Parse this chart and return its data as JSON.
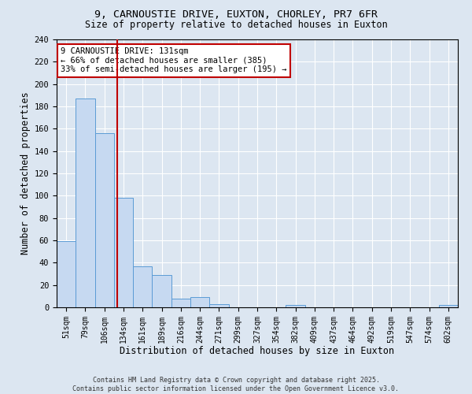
{
  "title_line1": "9, CARNOUSTIE DRIVE, EUXTON, CHORLEY, PR7 6FR",
  "title_line2": "Size of property relative to detached houses in Euxton",
  "xlabel": "Distribution of detached houses by size in Euxton",
  "ylabel": "Number of detached properties",
  "categories": [
    "51sqm",
    "79sqm",
    "106sqm",
    "134sqm",
    "161sqm",
    "189sqm",
    "216sqm",
    "244sqm",
    "271sqm",
    "299sqm",
    "327sqm",
    "354sqm",
    "382sqm",
    "409sqm",
    "437sqm",
    "464sqm",
    "492sqm",
    "519sqm",
    "547sqm",
    "574sqm",
    "602sqm"
  ],
  "values": [
    59,
    187,
    156,
    98,
    37,
    29,
    8,
    9,
    3,
    0,
    0,
    0,
    2,
    0,
    0,
    0,
    0,
    0,
    0,
    0,
    2
  ],
  "bar_color": "#c6d9f1",
  "bar_edge_color": "#5b9bd5",
  "background_color": "#dce6f1",
  "plot_bg_color": "#dce6f1",
  "vline_x": 2.67,
  "vline_color": "#c00000",
  "annotation_text": "9 CARNOUSTIE DRIVE: 131sqm\n← 66% of detached houses are smaller (385)\n33% of semi-detached houses are larger (195) →",
  "annotation_box_color": "#c00000",
  "footer_text": "Contains HM Land Registry data © Crown copyright and database right 2025.\nContains public sector information licensed under the Open Government Licence v3.0.",
  "ylim": [
    0,
    240
  ],
  "yticks": [
    0,
    20,
    40,
    60,
    80,
    100,
    120,
    140,
    160,
    180,
    200,
    220,
    240
  ]
}
